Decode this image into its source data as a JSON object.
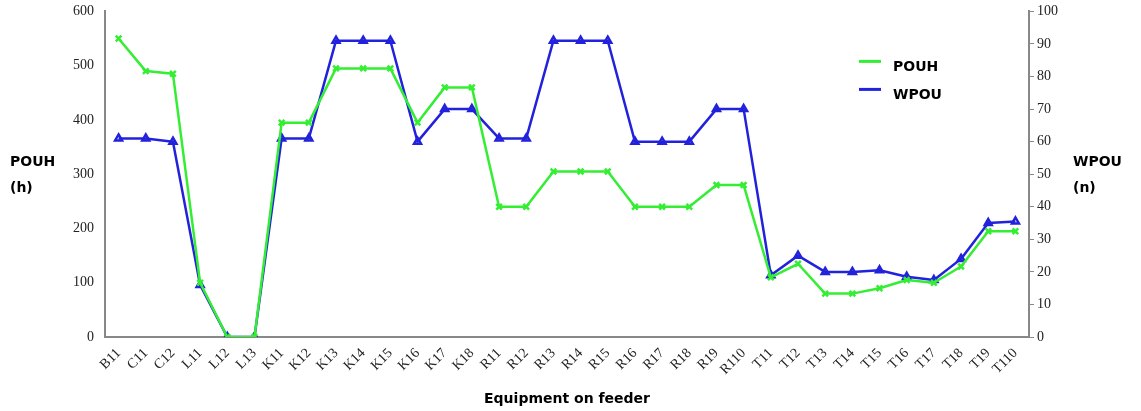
{
  "chart_data": {
    "type": "line",
    "xlabel": "Equipment on feeder",
    "ylabel": "POUH\n(h)",
    "y2label": "WPOU\n(n)",
    "categories": [
      "B11",
      "C11",
      "C12",
      "L11",
      "L12",
      "L13",
      "K11",
      "K12",
      "K13",
      "K14",
      "K15",
      "K16",
      "K17",
      "K18",
      "R11",
      "R12",
      "R13",
      "R14",
      "R15",
      "R16",
      "R17",
      "R18",
      "R19",
      "R110",
      "T11",
      "T12",
      "T13",
      "T14",
      "T15",
      "T16",
      "T17",
      "T18",
      "T19",
      "T110"
    ],
    "series": [
      {
        "name": "POUH",
        "color": "#33ee33",
        "marker": "cross",
        "values": [
          550,
          490,
          485,
          100,
          0,
          0,
          395,
          395,
          495,
          495,
          495,
          395,
          460,
          460,
          240,
          240,
          305,
          305,
          305,
          240,
          240,
          240,
          280,
          280,
          110,
          135,
          80,
          80,
          90,
          105,
          100,
          130,
          195,
          195
        ]
      },
      {
        "name": "WPOU",
        "color": "#2222dd",
        "marker": "triangle",
        "axis": "y2",
        "values": [
          61,
          61,
          60,
          16,
          0,
          0,
          61,
          61,
          91,
          91,
          91,
          60,
          70,
          70,
          61,
          61,
          91,
          91,
          91,
          60,
          60,
          60,
          70,
          70,
          19,
          25,
          20,
          20,
          20.5,
          18.5,
          17.5,
          24,
          35,
          35.5
        ]
      }
    ],
    "ylim": [
      0,
      600
    ],
    "yticks": [
      0,
      100,
      200,
      300,
      400,
      500,
      600
    ],
    "y2lim": [
      0,
      100
    ],
    "y2ticks": [
      0,
      10,
      20,
      30,
      40,
      50,
      60,
      70,
      80,
      90,
      100
    ],
    "legend": "top right",
    "grid": false
  }
}
